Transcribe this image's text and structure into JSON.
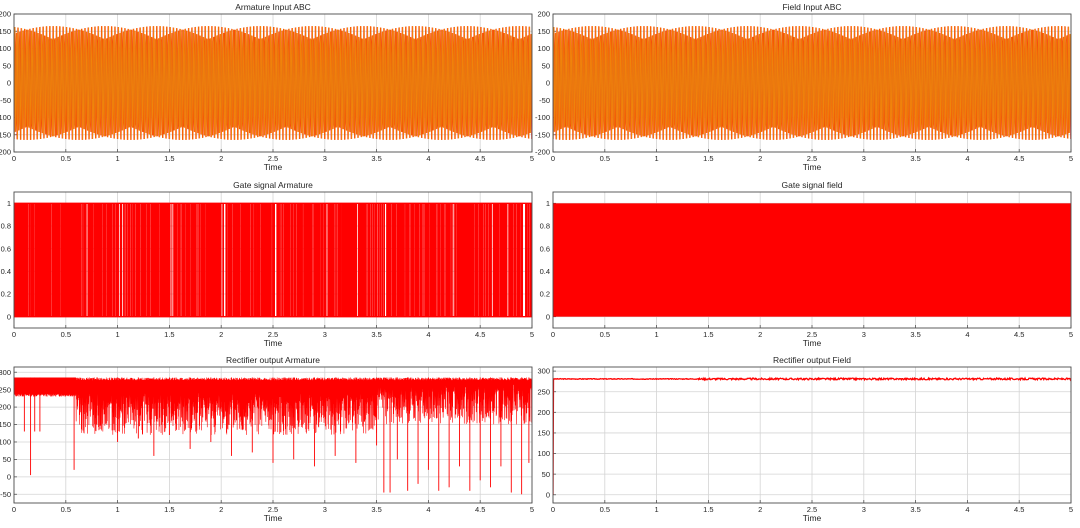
{
  "window": {
    "title": ""
  },
  "chart_data": [
    {
      "id": "armature-input",
      "type": "line",
      "title": "Armature Input ABC",
      "xlabel": "Time",
      "ylabel": "",
      "xlim": [
        0,
        5
      ],
      "ylim": [
        -200,
        200
      ],
      "xticks": [
        "0",
        "0.5",
        "1",
        "1.5",
        "2",
        "2.5",
        "3",
        "3.5",
        "4",
        "4.5",
        "5"
      ],
      "yticks": [
        "200",
        "150",
        "100",
        "50",
        "0",
        "-50",
        "-100",
        "-150",
        "-200"
      ],
      "grid": true,
      "series": [
        {
          "color": "#ff0000",
          "waveform": "sine",
          "amplitude": 165,
          "offset": 0,
          "frequency_hz": 60,
          "phase_deg": 0
        },
        {
          "color": "#ff9f00",
          "waveform": "sine",
          "amplitude": 165,
          "offset": 0,
          "frequency_hz": 60,
          "phase_deg": -120
        },
        {
          "color": "#e87510",
          "waveform": "sine",
          "amplitude": 165,
          "offset": 0,
          "frequency_hz": 60,
          "phase_deg": 120
        }
      ]
    },
    {
      "id": "field-input",
      "type": "line",
      "title": "Field Input ABC",
      "xlabel": "Time",
      "ylabel": "",
      "xlim": [
        0,
        5
      ],
      "ylim": [
        -200,
        200
      ],
      "xticks": [
        "0",
        "0.5",
        "1",
        "1.5",
        "2",
        "2.5",
        "3",
        "3.5",
        "4",
        "4.5",
        "5"
      ],
      "yticks": [
        "200",
        "150",
        "100",
        "50",
        "0",
        "-50",
        "-100",
        "-150",
        "-200"
      ],
      "grid": true,
      "series": [
        {
          "color": "#ff0000",
          "waveform": "sine",
          "amplitude": 165,
          "offset": 0,
          "frequency_hz": 60,
          "phase_deg": 0
        },
        {
          "color": "#ff9f00",
          "waveform": "sine",
          "amplitude": 165,
          "offset": 0,
          "frequency_hz": 60,
          "phase_deg": -120
        },
        {
          "color": "#e87510",
          "waveform": "sine",
          "amplitude": 165,
          "offset": 0,
          "frequency_hz": 60,
          "phase_deg": 120
        }
      ]
    },
    {
      "id": "gate-armature",
      "type": "line",
      "title": "Gate signal Armature",
      "xlabel": "Time",
      "ylabel": "",
      "xlim": [
        0,
        5
      ],
      "ylim": [
        -0.1,
        1.1
      ],
      "xticks": [
        "0",
        "0.5",
        "1",
        "1.5",
        "2",
        "2.5",
        "3",
        "3.5",
        "4",
        "4.5",
        "5"
      ],
      "yticks": [
        "1",
        "0.8",
        "0.6",
        "0.4",
        "0.2",
        "0"
      ],
      "grid": true,
      "series": [
        {
          "color": "#ff0000",
          "waveform": "pulse",
          "low": 0,
          "high": 1,
          "dense_from": 0.62,
          "pulse_times": [
            0.03,
            0.05,
            0.07,
            0.09,
            0.12,
            0.15,
            0.18,
            0.21,
            0.26,
            0.3,
            0.34,
            0.38,
            0.42,
            0.46,
            0.5,
            0.53,
            0.57,
            0.6,
            0.8,
            1.0,
            1.15,
            1.3,
            1.45,
            1.6,
            1.72,
            1.84,
            1.95,
            2.05,
            2.15,
            2.26,
            2.35,
            2.45,
            2.55,
            2.66,
            2.75,
            2.85,
            2.95,
            3.05,
            3.15,
            3.25,
            3.35,
            3.5,
            3.6,
            3.7,
            3.8,
            3.9,
            4.0,
            4.1,
            4.2,
            4.3,
            4.4,
            4.5,
            4.6,
            4.7,
            4.8,
            4.9
          ]
        }
      ]
    },
    {
      "id": "gate-field",
      "type": "area",
      "title": "Gate signal field",
      "xlabel": "Time",
      "ylabel": "",
      "xlim": [
        0,
        5
      ],
      "ylim": [
        -0.1,
        1.1
      ],
      "xticks": [
        "0",
        "0.5",
        "1",
        "1.5",
        "2",
        "2.5",
        "3",
        "3.5",
        "4",
        "4.5",
        "5"
      ],
      "yticks": [
        "1",
        "0.8",
        "0.6",
        "0.4",
        "0.2",
        "0"
      ],
      "grid": true,
      "series": [
        {
          "color": "#ff0000",
          "waveform": "solid",
          "low": 0,
          "high": 1
        }
      ]
    },
    {
      "id": "rectifier-armature",
      "type": "line",
      "title": "Rectifier output Armature",
      "xlabel": "Time",
      "ylabel": "",
      "xlim": [
        0,
        5
      ],
      "ylim": [
        -75,
        315
      ],
      "xticks": [
        "0",
        "0.5",
        "1",
        "1.5",
        "2",
        "2.5",
        "3",
        "3.5",
        "4",
        "4.5",
        "5"
      ],
      "yticks": [
        "300",
        "250",
        "200",
        "150",
        "100",
        "50",
        "0",
        "-50"
      ],
      "grid": true,
      "series": [
        {
          "color": "#ff0000",
          "waveform": "rectified",
          "top": 285,
          "initial_floor": 230,
          "floor_after": 120,
          "dips": [
            [
              0.1,
              130
            ],
            [
              0.16,
              5
            ],
            [
              0.2,
              130
            ],
            [
              0.25,
              130
            ],
            [
              0.58,
              20
            ],
            [
              0.8,
              150
            ],
            [
              1.0,
              100
            ],
            [
              1.2,
              110
            ],
            [
              1.35,
              60
            ],
            [
              1.5,
              120
            ],
            [
              1.7,
              80
            ],
            [
              1.9,
              100
            ],
            [
              2.1,
              60
            ],
            [
              2.3,
              70
            ],
            [
              2.5,
              40
            ],
            [
              2.7,
              50
            ],
            [
              2.9,
              30
            ],
            [
              3.1,
              60
            ],
            [
              3.3,
              40
            ],
            [
              3.5,
              90
            ],
            [
              3.57,
              -45
            ],
            [
              3.63,
              -45
            ],
            [
              3.7,
              50
            ],
            [
              3.8,
              -40
            ],
            [
              3.9,
              -20
            ],
            [
              4.0,
              20
            ],
            [
              4.1,
              -40
            ],
            [
              4.2,
              -30
            ],
            [
              4.3,
              30
            ],
            [
              4.4,
              -40
            ],
            [
              4.5,
              -10
            ],
            [
              4.6,
              -30
            ],
            [
              4.7,
              30
            ],
            [
              4.8,
              -45
            ],
            [
              4.9,
              -50
            ],
            [
              4.97,
              40
            ]
          ]
        }
      ]
    },
    {
      "id": "rectifier-field",
      "type": "line",
      "title": "Rectifier output Field",
      "xlabel": "Time",
      "ylabel": "",
      "xlim": [
        0,
        5
      ],
      "ylim": [
        -20,
        310
      ],
      "xticks": [
        "0",
        "0.5",
        "1",
        "1.5",
        "2",
        "2.5",
        "3",
        "3.5",
        "4",
        "4.5",
        "5"
      ],
      "yticks": [
        "300",
        "250",
        "200",
        "150",
        "100",
        "50",
        "0"
      ],
      "grid": true,
      "series": [
        {
          "color": "#ff0000",
          "waveform": "flat",
          "level": 281,
          "ripple": 3,
          "start_level": 0
        }
      ]
    }
  ]
}
